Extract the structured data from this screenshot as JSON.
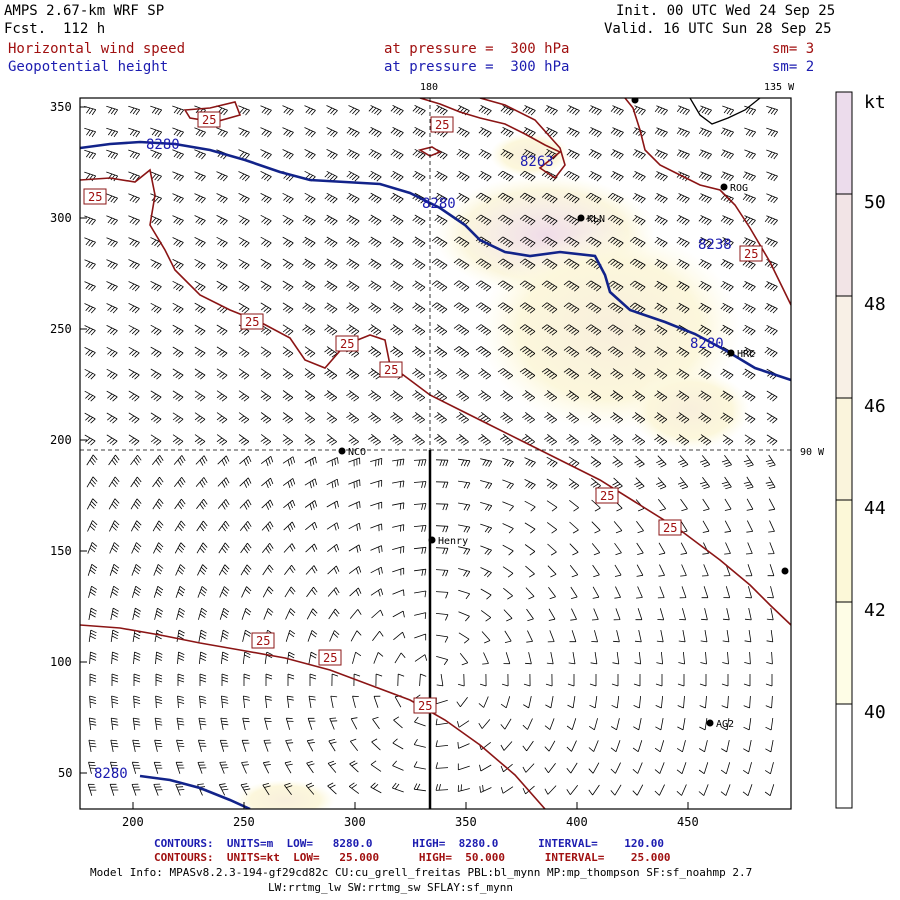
{
  "header": {
    "model": "AMPS 2.67-km WRF SP",
    "fcst": "Fcst.  112 h",
    "init": "Init. 00 UTC Wed 24 Sep 25",
    "valid": "Valid. 16 UTC Sun 28 Sep 25",
    "field1": "Horizontal wind speed",
    "field2": "Geopotential height",
    "level1": "at pressure =  300 hPa",
    "level2": "at pressure =  300 hPa",
    "sm1": "sm= 3",
    "sm2": "sm= 2"
  },
  "map": {
    "lon_top": "180",
    "lon_135": "135 W",
    "lon_90": "90 W",
    "x_ticks": [
      "200",
      "250",
      "300",
      "350",
      "400",
      "450"
    ],
    "y_ticks": [
      "50",
      "100",
      "150",
      "200",
      "250",
      "300",
      "350"
    ],
    "height_labels": [
      "8280",
      "8280",
      "8263",
      "8238",
      "8280",
      "8280"
    ],
    "speed_labels": [
      "25",
      "25",
      "25",
      "25",
      "25",
      "25",
      "25",
      "25",
      "25",
      "25",
      "25",
      "25"
    ],
    "stations": [
      "ROG",
      "KLN",
      "HRC",
      "NCO",
      "Henry",
      "AG2"
    ]
  },
  "colorbar": {
    "unit": "kt",
    "labels": [
      "50",
      "48",
      "46",
      "44",
      "42",
      "40"
    ],
    "colors": [
      "#ecdcec",
      "#f2e4e6",
      "#f8f0e6",
      "#faf4dc",
      "#fcf8d8",
      "#fefde6"
    ]
  },
  "footer": {
    "contours1": "CONTOURS:  UNITS=m  LOW=   8280.0      HIGH=  8280.0      INTERVAL=    120.00",
    "contours2": "CONTOURS:  UNITS=kt  LOW=   25.000      HIGH=  50.000      INTERVAL=    25.000",
    "model_info1": "Model Info: MPASv8.2.3-194-gf29cd82c CU:cu_grell_freitas PBL:bl_mynn MP:mp_thompson SF:sf_noahmp 2.7",
    "model_info2": "LW:rrtmg_lw SW:rrtmg_sw SFLAY:sf_mynn"
  }
}
